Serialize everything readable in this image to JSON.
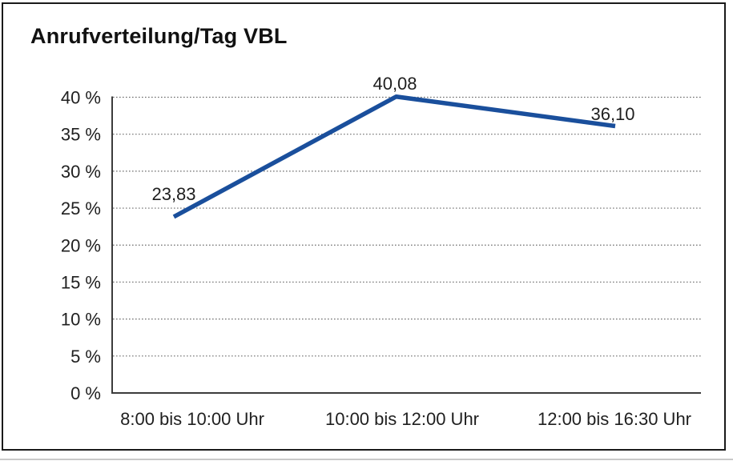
{
  "title": "Anrufverteilung/Tag VBL",
  "chart_data": {
    "type": "line",
    "title": "Anrufverteilung/Tag VBL",
    "categories": [
      "8:00 bis 10:00 Uhr",
      "10:00 bis 12:00 Uhr",
      "12:00 bis 16:30 Uhr"
    ],
    "values": [
      23.83,
      40.08,
      36.1
    ],
    "data_labels": [
      "23,83",
      "40,08",
      "36,10"
    ],
    "xlabel": "",
    "ylabel": "",
    "ylim": [
      0,
      40
    ],
    "ytick_step": 5,
    "ytick_labels": [
      "0 %",
      "5 %",
      "10 %",
      "15 %",
      "20 %",
      "25 %",
      "30 %",
      "35 %",
      "40 %"
    ],
    "grid": "horizontal-dotted",
    "legend": "none",
    "line_color": "#1a4f9c",
    "grid_color": "#6e6e6e",
    "axis_color": "#3c3c3c",
    "text_color": "#1f1f1f"
  }
}
